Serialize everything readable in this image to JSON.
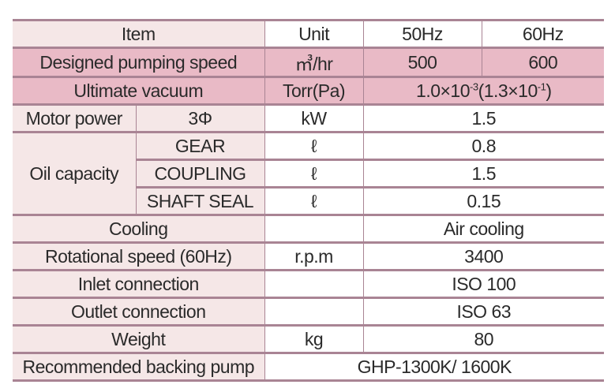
{
  "colors": {
    "header_item_bg": "#f5e7e7",
    "highlight_row_bg": "#e9bac6",
    "border": "#a98494"
  },
  "header": {
    "item": "Item",
    "unit": "Unit",
    "col_50hz": "50Hz",
    "col_60hz": "60Hz"
  },
  "rows": {
    "pumping_speed": {
      "item": "Designed pumping speed",
      "unit": "㎥/hr",
      "v50": "500",
      "v60": "600"
    },
    "ultimate_vacuum": {
      "item": "Ultimate vacuum",
      "unit": "Torr(Pa)",
      "value_base": "1.0×10",
      "value_exp": "-3",
      "value_pa_base": "(1.3×10",
      "value_pa_exp": "-1",
      "value_close": ")"
    },
    "motor_power": {
      "item": "Motor power",
      "sub": "3Φ",
      "unit": "kW",
      "value": "1.5"
    },
    "oil_capacity": {
      "item": "Oil capacity",
      "gear": {
        "sub": "GEAR",
        "unit": "ℓ",
        "value": "0.8"
      },
      "coupling": {
        "sub": "COUPLING",
        "unit": "ℓ",
        "value": "1.5"
      },
      "shaft_seal": {
        "sub": "SHAFT SEAL",
        "unit": "ℓ",
        "value": "0.15"
      }
    },
    "cooling": {
      "item": "Cooling",
      "unit": "",
      "value": "Air cooling"
    },
    "rotational_speed": {
      "item": "Rotational speed (60Hz)",
      "unit": "r.p.m",
      "value": "3400"
    },
    "inlet": {
      "item": "Inlet connection",
      "unit": "",
      "value": "ISO 100"
    },
    "outlet": {
      "item": "Outlet connection",
      "unit": "",
      "value": "ISO 63"
    },
    "weight": {
      "item": "Weight",
      "unit": "kg",
      "value": "80"
    },
    "backing_pump": {
      "item": "Recommended backing pump",
      "value": "GHP-1300K/ 1600K"
    }
  }
}
